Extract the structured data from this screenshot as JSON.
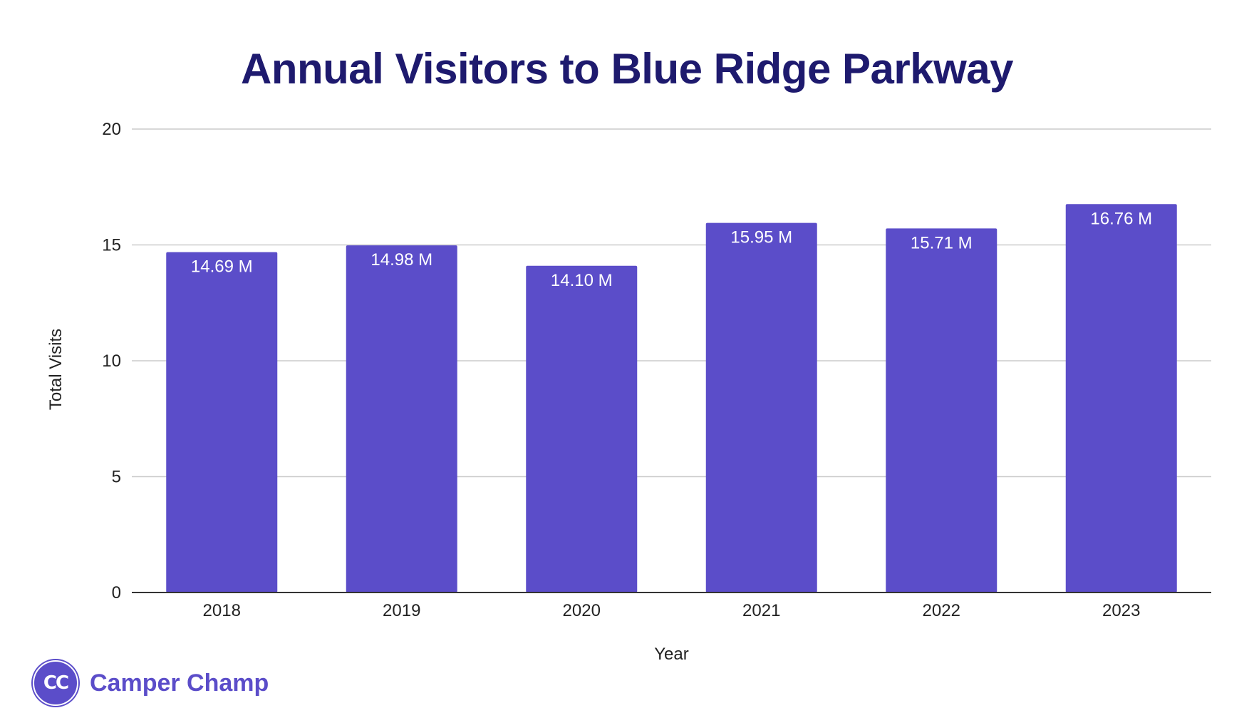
{
  "chart_data": {
    "type": "bar",
    "title": "Annual Visitors to Blue Ridge Parkway",
    "xlabel": "Year",
    "ylabel": "Total Visits",
    "categories": [
      "2018",
      "2019",
      "2020",
      "2021",
      "2022",
      "2023"
    ],
    "values": [
      14.69,
      14.98,
      14.1,
      15.95,
      15.71,
      16.76
    ],
    "data_labels": [
      "14.69 M",
      "14.98 M",
      "14.10 M",
      "15.95 M",
      "15.71 M",
      "16.76 M"
    ],
    "ylim": [
      0,
      20
    ],
    "yticks": [
      "0",
      "5",
      "10",
      "15",
      "20"
    ],
    "grid": true,
    "legend": "none",
    "bar_color": "#5b4dc9"
  },
  "brand": {
    "logo_text": "CC",
    "name": "Camper Champ"
  },
  "colors": {
    "title": "#1e1a6e",
    "accent": "#5b4dc9",
    "gridline": "#cccccc",
    "axis": "#333333"
  }
}
